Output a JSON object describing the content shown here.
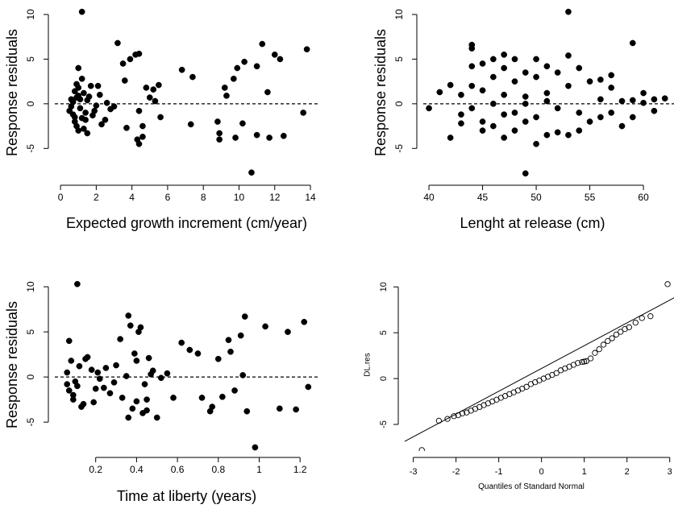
{
  "chart_data": [
    {
      "type": "scatter",
      "marker": "filled",
      "xlabel": "Expected growth increment (cm/year)",
      "ylabel": "Response residuals",
      "x": [
        1.2,
        0.6,
        0.8,
        1.0,
        0.9,
        1.1,
        1.3,
        0.7,
        1.5,
        1.4,
        0.5,
        0.8,
        1.0,
        1.2,
        1.6,
        1.8,
        2.0,
        2.2,
        2.5,
        2.8,
        1.0,
        0.9,
        1.3,
        1.1,
        0.7,
        1.7,
        2.3,
        2.6,
        3.2,
        3.0,
        3.5,
        3.7,
        3.9,
        4.2,
        4.4,
        4.4,
        4.6,
        4.8,
        4.3,
        5.0,
        4.4,
        5.5,
        5.2,
        3.6,
        4.6,
        5.3,
        5.6,
        1.9,
        2.1,
        0.8,
        6.8,
        7.4,
        7.3,
        8.8,
        8.9,
        8.9,
        9.2,
        9.3,
        9.8,
        9.7,
        9.9,
        10.3,
        10.2,
        10.7,
        11.0,
        11.3,
        11.0,
        11.6,
        11.7,
        12.0,
        12.5,
        12.3,
        13.6,
        13.8,
        0.9,
        1.4,
        0.6,
        1.0,
        1.2,
        1.5
      ],
      "values": [
        10.3,
        0.5,
        -1.5,
        1.8,
        -2.5,
        -0.5,
        1.2,
        0.2,
        -3.3,
        -1.0,
        -0.8,
        -2.0,
        4.0,
        2.8,
        0.8,
        -1.3,
        -0.2,
        1.0,
        -1.8,
        -0.6,
        -3.0,
        2.2,
        -2.8,
        0.5,
        -1.2,
        2.0,
        -2.3,
        0.1,
        6.8,
        -0.3,
        4.5,
        -2.7,
        5.0,
        5.5,
        -0.8,
        5.6,
        -2.5,
        1.8,
        -4.0,
        0.7,
        -4.5,
        2.1,
        1.6,
        2.6,
        -3.7,
        0.3,
        -1.5,
        -0.8,
        2.0,
        1.4,
        3.8,
        3.0,
        -2.3,
        -2.0,
        -3.3,
        -4.0,
        1.8,
        0.9,
        -3.8,
        2.8,
        4.0,
        4.7,
        -2.2,
        -7.7,
        4.2,
        6.7,
        -3.5,
        1.3,
        -3.8,
        5.5,
        -3.6,
        5.0,
        -1.0,
        6.1,
        0.7,
        -1.8,
        -0.3,
        0.9,
        -1.6,
        0.4
      ],
      "xlim": [
        -0.32,
        14.45
      ],
      "ylim": [
        -8.4,
        10.9
      ],
      "xticks": [
        0,
        2,
        4,
        6,
        8,
        10,
        12,
        14
      ],
      "yticks": [
        -5,
        0,
        5,
        10
      ],
      "hline": 0
    },
    {
      "type": "scatter",
      "marker": "filled",
      "xlabel": "Lenght at release (cm)",
      "ylabel": "Response residuals",
      "x": [
        40,
        41,
        42,
        42,
        43,
        43,
        43,
        44,
        44,
        44,
        44,
        44,
        45,
        45,
        45,
        45,
        46,
        46,
        46,
        46,
        47,
        47,
        47,
        47,
        48,
        48,
        48,
        48,
        49,
        49,
        49,
        49,
        50,
        50,
        50,
        50,
        51,
        51,
        51,
        52,
        52,
        52,
        53,
        53,
        53,
        53,
        54,
        54,
        54,
        55,
        55,
        56,
        56,
        56,
        57,
        57,
        57,
        58,
        58,
        59,
        59,
        59,
        60,
        61,
        61,
        62,
        60,
        47,
        49,
        51
      ],
      "values": [
        -0.5,
        1.3,
        2.1,
        -3.8,
        1.0,
        -1.2,
        -2.2,
        6.6,
        6.2,
        4.2,
        2.0,
        -0.5,
        4.5,
        1.5,
        -2.0,
        -3.0,
        5.0,
        3.0,
        0.0,
        -2.5,
        5.5,
        4.0,
        1.0,
        -3.8,
        5.0,
        2.5,
        -1.0,
        -3.0,
        3.5,
        -2.0,
        -7.8,
        0.8,
        5.0,
        3.0,
        -1.5,
        -4.5,
        4.2,
        1.2,
        -3.5,
        3.5,
        -0.5,
        -3.2,
        10.3,
        5.4,
        2.0,
        -3.5,
        4.0,
        -1.0,
        -3.0,
        2.5,
        -2.0,
        2.7,
        0.5,
        -1.5,
        3.2,
        1.8,
        -1.0,
        0.3,
        -2.5,
        6.8,
        0.4,
        -1.5,
        0.1,
        0.5,
        -0.8,
        0.6,
        1.2,
        -1.2,
        0.0,
        0.3
      ],
      "xlim": [
        39.47,
        62.85
      ],
      "ylim": [
        -8.4,
        10.9
      ],
      "xticks": [
        40,
        45,
        50,
        55,
        60
      ],
      "yticks": [
        -5,
        0,
        5,
        10
      ],
      "hline": 0
    },
    {
      "type": "scatter",
      "marker": "filled",
      "xlabel": "Time at liberty (years)",
      "ylabel": "Response residuals",
      "x": [
        0.11,
        0.06,
        0.07,
        0.08,
        0.09,
        0.1,
        0.12,
        0.07,
        0.13,
        0.11,
        0.06,
        0.09,
        0.15,
        0.18,
        0.2,
        0.22,
        0.25,
        0.27,
        0.29,
        0.14,
        0.16,
        0.19,
        0.21,
        0.24,
        0.3,
        0.33,
        0.35,
        0.32,
        0.36,
        0.38,
        0.37,
        0.4,
        0.42,
        0.44,
        0.41,
        0.45,
        0.4,
        0.43,
        0.48,
        0.36,
        0.46,
        0.39,
        0.45,
        0.47,
        0.5,
        0.52,
        0.58,
        0.62,
        0.66,
        0.7,
        0.76,
        0.77,
        0.72,
        0.8,
        0.82,
        0.85,
        0.86,
        0.91,
        0.93,
        0.94,
        0.98,
        1.03,
        1.1,
        1.14,
        1.18,
        1.22,
        1.24,
        0.88,
        0.92,
        0.55
      ],
      "values": [
        10.3,
        0.5,
        -1.5,
        1.8,
        -2.5,
        -0.5,
        1.2,
        4.0,
        -3.3,
        -1.0,
        -0.8,
        -2.0,
        2.0,
        0.8,
        -1.3,
        -0.2,
        1.0,
        -1.8,
        -0.6,
        -3.0,
        2.2,
        -2.8,
        0.5,
        -1.2,
        1.3,
        -2.3,
        0.1,
        4.2,
        6.8,
        -3.5,
        5.7,
        -2.7,
        5.5,
        -0.8,
        5.0,
        -2.5,
        1.8,
        -4.0,
        0.7,
        -4.5,
        2.1,
        2.6,
        -3.7,
        0.3,
        -4.5,
        -0.1,
        -2.3,
        3.8,
        3.0,
        2.6,
        -3.8,
        -3.3,
        -2.3,
        2.0,
        -2.2,
        4.1,
        2.8,
        4.6,
        6.7,
        -3.8,
        -7.8,
        5.6,
        -3.5,
        5.0,
        -3.6,
        6.1,
        -1.1,
        -1.5,
        0.2,
        0.4
      ],
      "xlim": [
        0.0,
        1.29
      ],
      "ylim": [
        -8.2,
        10.9
      ],
      "xticks": [
        0.2,
        0.4,
        0.6,
        0.8,
        1.0,
        1.2
      ],
      "yticks": [
        -5,
        0,
        5,
        10
      ],
      "hline": 0
    },
    {
      "type": "qq",
      "marker": "open",
      "xlabel": "Quantiles of Standard Normal",
      "ylabel": "DL.res",
      "x": [
        -2.8,
        -2.4,
        -2.2,
        -2.05,
        -1.95,
        -1.85,
        -1.75,
        -1.65,
        -1.55,
        -1.45,
        -1.35,
        -1.25,
        -1.15,
        -1.05,
        -0.95,
        -0.85,
        -0.75,
        -0.65,
        -0.55,
        -0.45,
        -0.35,
        -0.25,
        -0.15,
        -0.05,
        0.05,
        0.15,
        0.25,
        0.35,
        0.45,
        0.55,
        0.65,
        0.75,
        0.85,
        0.95,
        1.05,
        1.15,
        1.25,
        1.35,
        1.45,
        1.55,
        1.65,
        1.75,
        1.85,
        1.95,
        2.05,
        2.2,
        2.35,
        2.55,
        2.95,
        1.0
      ],
      "values": [
        -7.8,
        -4.6,
        -4.4,
        -4.1,
        -4.0,
        -3.8,
        -3.7,
        -3.5,
        -3.3,
        -3.1,
        -2.9,
        -2.7,
        -2.5,
        -2.3,
        -2.1,
        -1.9,
        -1.7,
        -1.5,
        -1.3,
        -1.1,
        -0.9,
        -0.6,
        -0.4,
        -0.2,
        0.0,
        0.2,
        0.4,
        0.6,
        0.9,
        1.1,
        1.3,
        1.5,
        1.7,
        1.8,
        1.9,
        2.2,
        2.8,
        3.2,
        3.7,
        4.1,
        4.4,
        4.8,
        5.1,
        5.4,
        5.6,
        6.1,
        6.6,
        6.8,
        10.3,
        1.85
      ],
      "reference_line": {
        "x": [
          -3.3,
          3.3
        ],
        "y": [
          -7.1,
          9.3
        ]
      },
      "xlim": [
        -3.2,
        3.1
      ],
      "ylim": [
        -7.9,
        10.9
      ],
      "xticks": [
        -3,
        -2,
        -1,
        0,
        1,
        2,
        3
      ],
      "yticks": [
        -5,
        0,
        5,
        10
      ]
    }
  ]
}
